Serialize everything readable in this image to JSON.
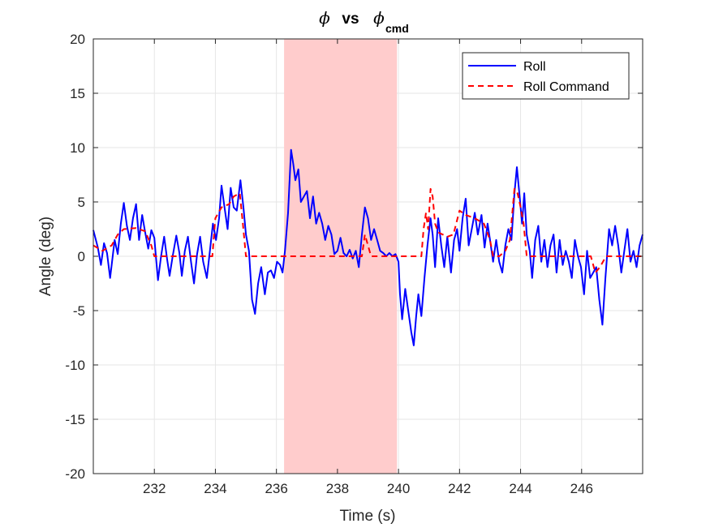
{
  "chart_data": {
    "type": "line",
    "title": {
      "symbol_main": "ϕ",
      "vs": "vs",
      "symbol_cmd": "ϕ",
      "subscript": "cmd"
    },
    "xlabel": "Time (s)",
    "ylabel": "Angle (deg)",
    "xlim": [
      230.0,
      248.0
    ],
    "ylim": [
      -20,
      20
    ],
    "xticks": [
      232,
      234,
      236,
      238,
      240,
      242,
      244,
      246
    ],
    "yticks": [
      -20,
      -15,
      -10,
      -5,
      0,
      5,
      10,
      15,
      20
    ],
    "grid": true,
    "legend_location": "top-right",
    "shaded_region": {
      "x_start": 236.25,
      "x_end": 239.95,
      "color": "#ffcccc"
    },
    "series": [
      {
        "name": "Roll",
        "color": "#0000ff",
        "style": "solid",
        "points": [
          [
            230.0,
            2.4
          ],
          [
            230.15,
            0.8
          ],
          [
            230.25,
            -0.8
          ],
          [
            230.35,
            1.2
          ],
          [
            230.45,
            0.3
          ],
          [
            230.55,
            -2.0
          ],
          [
            230.7,
            1.5
          ],
          [
            230.8,
            0.2
          ],
          [
            230.9,
            3.0
          ],
          [
            231.0,
            4.9
          ],
          [
            231.1,
            2.8
          ],
          [
            231.2,
            1.5
          ],
          [
            231.3,
            3.5
          ],
          [
            231.4,
            4.8
          ],
          [
            231.5,
            1.5
          ],
          [
            231.6,
            3.8
          ],
          [
            231.7,
            2.2
          ],
          [
            231.8,
            0.7
          ],
          [
            231.9,
            2.4
          ],
          [
            232.0,
            1.7
          ],
          [
            232.05,
            0.0
          ],
          [
            232.12,
            -2.2
          ],
          [
            232.22,
            0.0
          ],
          [
            232.32,
            1.8
          ],
          [
            232.42,
            -0.3
          ],
          [
            232.5,
            -1.8
          ],
          [
            232.6,
            0.0
          ],
          [
            232.72,
            1.9
          ],
          [
            232.82,
            0.3
          ],
          [
            232.9,
            -1.8
          ],
          [
            233.0,
            0.5
          ],
          [
            233.1,
            1.8
          ],
          [
            233.2,
            -0.5
          ],
          [
            233.3,
            -2.5
          ],
          [
            233.4,
            0.2
          ],
          [
            233.5,
            1.8
          ],
          [
            233.6,
            -0.5
          ],
          [
            233.72,
            -2.0
          ],
          [
            233.82,
            0.5
          ],
          [
            233.92,
            3.0
          ],
          [
            234.02,
            1.5
          ],
          [
            234.12,
            3.5
          ],
          [
            234.2,
            6.5
          ],
          [
            234.3,
            4.5
          ],
          [
            234.4,
            2.5
          ],
          [
            234.5,
            6.3
          ],
          [
            234.6,
            4.5
          ],
          [
            234.7,
            4.2
          ],
          [
            234.82,
            7.0
          ],
          [
            234.92,
            4.5
          ],
          [
            235.0,
            2.0
          ],
          [
            235.1,
            0.5
          ],
          [
            235.2,
            -4.0
          ],
          [
            235.3,
            -5.3
          ],
          [
            235.4,
            -2.5
          ],
          [
            235.5,
            -1.0
          ],
          [
            235.62,
            -3.5
          ],
          [
            235.72,
            -1.5
          ],
          [
            235.82,
            -1.3
          ],
          [
            235.92,
            -2.0
          ],
          [
            236.02,
            -0.5
          ],
          [
            236.12,
            -0.8
          ],
          [
            236.2,
            -1.5
          ],
          [
            236.28,
            0.5
          ],
          [
            236.38,
            4.0
          ],
          [
            236.48,
            9.8
          ],
          [
            236.55,
            8.5
          ],
          [
            236.62,
            7.0
          ],
          [
            236.72,
            8.0
          ],
          [
            236.8,
            5.0
          ],
          [
            236.9,
            5.5
          ],
          [
            237.0,
            6.0
          ],
          [
            237.1,
            3.5
          ],
          [
            237.2,
            5.5
          ],
          [
            237.3,
            3.0
          ],
          [
            237.4,
            4.0
          ],
          [
            237.5,
            3.0
          ],
          [
            237.6,
            1.5
          ],
          [
            237.7,
            2.8
          ],
          [
            237.8,
            2.0
          ],
          [
            237.9,
            0.2
          ],
          [
            238.0,
            0.5
          ],
          [
            238.1,
            1.7
          ],
          [
            238.2,
            0.3
          ],
          [
            238.3,
            0.0
          ],
          [
            238.4,
            0.6
          ],
          [
            238.5,
            -0.2
          ],
          [
            238.6,
            0.5
          ],
          [
            238.7,
            -1.0
          ],
          [
            238.8,
            2.0
          ],
          [
            238.9,
            4.5
          ],
          [
            239.0,
            3.5
          ],
          [
            239.1,
            1.5
          ],
          [
            239.2,
            2.5
          ],
          [
            239.3,
            1.5
          ],
          [
            239.4,
            0.5
          ],
          [
            239.5,
            0.3
          ],
          [
            239.6,
            0.0
          ],
          [
            239.7,
            0.3
          ],
          [
            239.8,
            0.0
          ],
          [
            239.9,
            0.2
          ],
          [
            240.0,
            -0.5
          ],
          [
            240.05,
            -3.5
          ],
          [
            240.12,
            -5.8
          ],
          [
            240.22,
            -3.0
          ],
          [
            240.32,
            -5.0
          ],
          [
            240.42,
            -7.0
          ],
          [
            240.5,
            -8.2
          ],
          [
            240.58,
            -5.5
          ],
          [
            240.65,
            -3.5
          ],
          [
            240.75,
            -5.5
          ],
          [
            240.85,
            -2.0
          ],
          [
            240.95,
            1.0
          ],
          [
            241.05,
            3.5
          ],
          [
            241.12,
            2.0
          ],
          [
            241.2,
            -1.0
          ],
          [
            241.3,
            3.5
          ],
          [
            241.4,
            1.0
          ],
          [
            241.5,
            -1.0
          ],
          [
            241.6,
            1.8
          ],
          [
            241.72,
            -1.5
          ],
          [
            241.82,
            1.5
          ],
          [
            241.92,
            2.5
          ],
          [
            242.0,
            0.5
          ],
          [
            242.1,
            3.5
          ],
          [
            242.2,
            5.3
          ],
          [
            242.3,
            1.0
          ],
          [
            242.4,
            2.5
          ],
          [
            242.5,
            4.0
          ],
          [
            242.6,
            2.0
          ],
          [
            242.72,
            3.8
          ],
          [
            242.82,
            0.8
          ],
          [
            242.92,
            3.0
          ],
          [
            243.0,
            1.5
          ],
          [
            243.1,
            -0.5
          ],
          [
            243.2,
            1.5
          ],
          [
            243.3,
            -0.5
          ],
          [
            243.4,
            -1.5
          ],
          [
            243.5,
            1.0
          ],
          [
            243.6,
            2.5
          ],
          [
            243.7,
            1.5
          ],
          [
            243.8,
            5.8
          ],
          [
            243.88,
            8.2
          ],
          [
            243.97,
            5.5
          ],
          [
            244.05,
            3.0
          ],
          [
            244.12,
            5.8
          ],
          [
            244.2,
            2.0
          ],
          [
            244.3,
            0.5
          ],
          [
            244.38,
            -2.0
          ],
          [
            244.48,
            1.5
          ],
          [
            244.58,
            2.8
          ],
          [
            244.68,
            -0.5
          ],
          [
            244.78,
            1.5
          ],
          [
            244.88,
            -1.0
          ],
          [
            244.98,
            1.0
          ],
          [
            245.08,
            2.0
          ],
          [
            245.18,
            -1.5
          ],
          [
            245.28,
            1.5
          ],
          [
            245.38,
            -0.8
          ],
          [
            245.48,
            0.5
          ],
          [
            245.58,
            -0.5
          ],
          [
            245.68,
            -2.0
          ],
          [
            245.78,
            1.5
          ],
          [
            245.88,
            0.0
          ],
          [
            245.98,
            -1.0
          ],
          [
            246.08,
            -3.5
          ],
          [
            246.18,
            0.5
          ],
          [
            246.28,
            -2.0
          ],
          [
            246.38,
            -1.5
          ],
          [
            246.48,
            -1.0
          ],
          [
            246.58,
            -4.0
          ],
          [
            246.68,
            -6.3
          ],
          [
            246.78,
            -2.0
          ],
          [
            246.9,
            2.5
          ],
          [
            247.0,
            1.0
          ],
          [
            247.1,
            2.8
          ],
          [
            247.2,
            1.0
          ],
          [
            247.3,
            -1.5
          ],
          [
            247.4,
            0.5
          ],
          [
            247.5,
            2.5
          ],
          [
            247.6,
            -0.5
          ],
          [
            247.7,
            0.5
          ],
          [
            247.8,
            -1.0
          ],
          [
            247.9,
            1.0
          ],
          [
            248.0,
            2.0
          ]
        ]
      },
      {
        "name": "Roll Command",
        "color": "#ff0000",
        "style": "dashed",
        "points": [
          [
            230.0,
            1.0
          ],
          [
            230.3,
            0.5
          ],
          [
            230.6,
            1.0
          ],
          [
            230.8,
            2.0
          ],
          [
            231.0,
            2.5
          ],
          [
            231.4,
            2.6
          ],
          [
            231.7,
            2.3
          ],
          [
            231.9,
            1.0
          ],
          [
            232.0,
            0.0
          ],
          [
            232.5,
            0.0
          ],
          [
            233.0,
            0.0
          ],
          [
            233.5,
            0.0
          ],
          [
            233.9,
            0.0
          ],
          [
            234.0,
            3.5
          ],
          [
            234.2,
            4.5
          ],
          [
            234.45,
            4.8
          ],
          [
            234.6,
            5.5
          ],
          [
            234.8,
            5.8
          ],
          [
            234.9,
            3.0
          ],
          [
            235.0,
            0.0
          ],
          [
            235.5,
            0.0
          ],
          [
            236.0,
            0.0
          ],
          [
            236.5,
            0.0
          ],
          [
            237.0,
            0.0
          ],
          [
            237.5,
            0.0
          ],
          [
            238.0,
            0.0
          ],
          [
            238.5,
            0.0
          ],
          [
            238.8,
            0.0
          ],
          [
            238.9,
            2.0
          ],
          [
            239.0,
            1.0
          ],
          [
            239.1,
            0.0
          ],
          [
            239.5,
            0.0
          ],
          [
            240.0,
            0.0
          ],
          [
            240.5,
            0.0
          ],
          [
            240.75,
            0.0
          ],
          [
            240.82,
            2.5
          ],
          [
            240.9,
            4.0
          ],
          [
            240.97,
            2.5
          ],
          [
            241.05,
            6.2
          ],
          [
            241.12,
            5.5
          ],
          [
            241.2,
            3.0
          ],
          [
            241.3,
            2.2
          ],
          [
            241.45,
            2.0
          ],
          [
            241.6,
            1.8
          ],
          [
            241.8,
            2.0
          ],
          [
            242.0,
            4.2
          ],
          [
            242.2,
            3.8
          ],
          [
            242.5,
            3.5
          ],
          [
            242.8,
            3.0
          ],
          [
            243.0,
            1.5
          ],
          [
            243.1,
            0.0
          ],
          [
            243.3,
            0.0
          ],
          [
            243.5,
            0.5
          ],
          [
            243.65,
            1.5
          ],
          [
            243.8,
            6.2
          ],
          [
            243.9,
            5.8
          ],
          [
            244.0,
            4.5
          ],
          [
            244.1,
            3.0
          ],
          [
            244.2,
            0.0
          ],
          [
            244.5,
            0.0
          ],
          [
            245.0,
            0.0
          ],
          [
            245.5,
            0.0
          ],
          [
            246.0,
            0.0
          ],
          [
            246.3,
            0.0
          ],
          [
            246.45,
            -1.5
          ],
          [
            246.6,
            -1.0
          ],
          [
            246.8,
            0.0
          ],
          [
            247.0,
            0.0
          ],
          [
            247.5,
            0.0
          ],
          [
            248.0,
            0.0
          ]
        ]
      }
    ]
  }
}
